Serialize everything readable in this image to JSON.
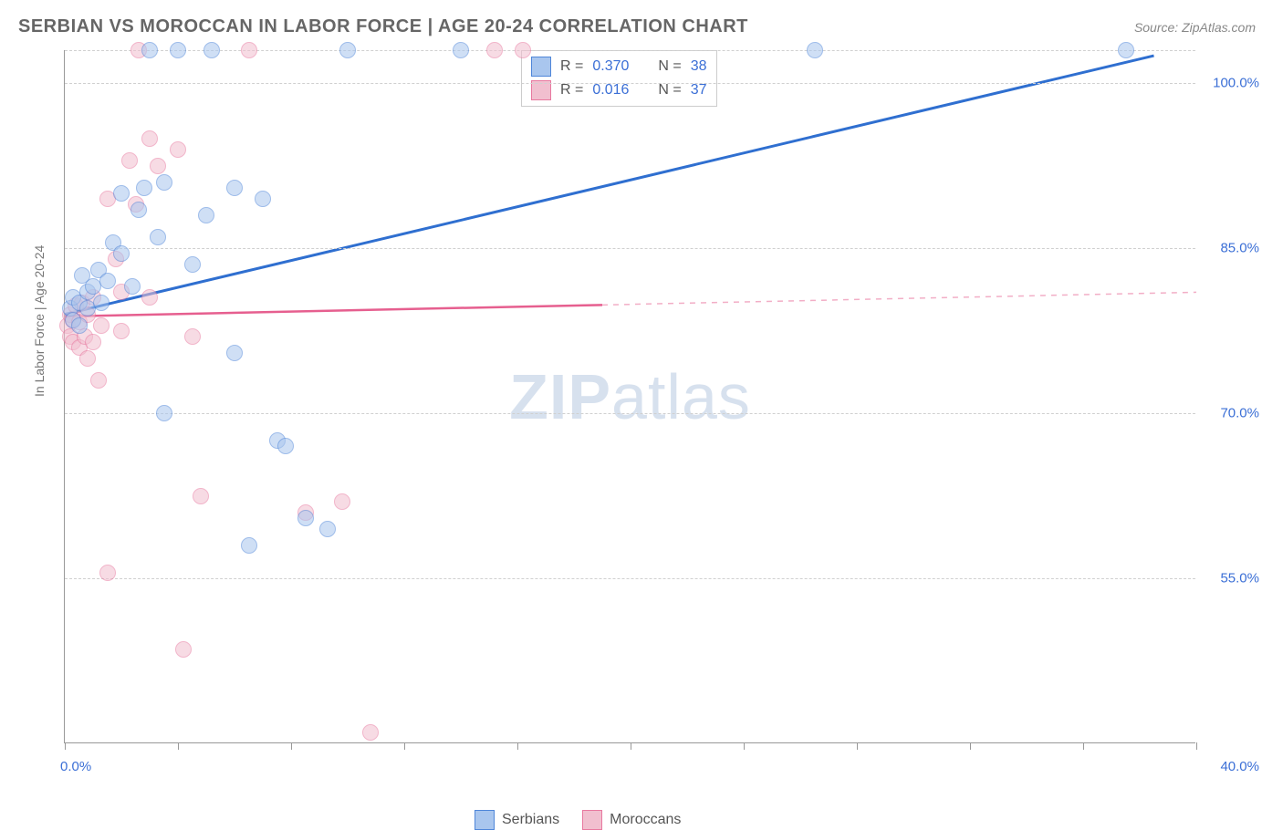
{
  "header": {
    "title": "SERBIAN VS MOROCCAN IN LABOR FORCE | AGE 20-24 CORRELATION CHART",
    "source": "Source: ZipAtlas.com"
  },
  "watermark": {
    "bold": "ZIP",
    "light": "atlas"
  },
  "chart": {
    "type": "scatter",
    "ylabel": "In Labor Force | Age 20-24",
    "x_domain": [
      0,
      40
    ],
    "y_domain": [
      40,
      103
    ],
    "background_color": "#ffffff",
    "grid_color": "#d0d0d0",
    "axis_color": "#999999",
    "tick_label_color": "#3b6fd6",
    "axis_label_color": "#777777",
    "marker_radius": 9,
    "marker_opacity": 0.55,
    "y_ticks": [
      {
        "v": 55,
        "label": "55.0%"
      },
      {
        "v": 70,
        "label": "70.0%"
      },
      {
        "v": 85,
        "label": "85.0%"
      },
      {
        "v": 100,
        "label": "100.0%"
      }
    ],
    "y_gridlines": [
      55,
      70,
      85,
      100,
      103
    ],
    "x_tick_positions": [
      0,
      4,
      8,
      12,
      16,
      20,
      24,
      28,
      32,
      36,
      40
    ],
    "x_labels": [
      {
        "v": 0,
        "label": "0.0%"
      },
      {
        "v": 40,
        "label": "40.0%"
      }
    ],
    "series": {
      "serbians": {
        "label": "Serbians",
        "fill": "#a9c6ee",
        "stroke": "#4f86d9",
        "line_color": "#2f6fd0",
        "line_width": 3,
        "R": "0.370",
        "N": "38",
        "regression": {
          "x1": 0,
          "y1": 79.0,
          "x2": 38.5,
          "y2": 102.5,
          "solid_until_x": 38.5
        },
        "points": [
          {
            "x": 0.2,
            "y": 79.5
          },
          {
            "x": 0.3,
            "y": 78.5
          },
          {
            "x": 0.3,
            "y": 80.5
          },
          {
            "x": 0.5,
            "y": 80.0
          },
          {
            "x": 0.5,
            "y": 78.0
          },
          {
            "x": 0.6,
            "y": 82.5
          },
          {
            "x": 0.8,
            "y": 81.0
          },
          {
            "x": 0.8,
            "y": 79.5
          },
          {
            "x": 1.0,
            "y": 81.5
          },
          {
            "x": 1.2,
            "y": 83.0
          },
          {
            "x": 1.3,
            "y": 80.0
          },
          {
            "x": 1.5,
            "y": 82.0
          },
          {
            "x": 1.7,
            "y": 85.5
          },
          {
            "x": 2.0,
            "y": 90.0
          },
          {
            "x": 2.0,
            "y": 84.5
          },
          {
            "x": 2.4,
            "y": 81.5
          },
          {
            "x": 2.6,
            "y": 88.5
          },
          {
            "x": 2.8,
            "y": 90.5
          },
          {
            "x": 3.0,
            "y": 103.0
          },
          {
            "x": 3.3,
            "y": 86.0
          },
          {
            "x": 3.5,
            "y": 91.0
          },
          {
            "x": 3.5,
            "y": 70.0
          },
          {
            "x": 4.0,
            "y": 103.0
          },
          {
            "x": 4.5,
            "y": 83.5
          },
          {
            "x": 5.0,
            "y": 88.0
          },
          {
            "x": 5.2,
            "y": 103.0
          },
          {
            "x": 6.0,
            "y": 90.5
          },
          {
            "x": 6.0,
            "y": 75.5
          },
          {
            "x": 6.5,
            "y": 58.0
          },
          {
            "x": 7.0,
            "y": 89.5
          },
          {
            "x": 7.5,
            "y": 67.5
          },
          {
            "x": 7.8,
            "y": 67.0
          },
          {
            "x": 8.5,
            "y": 60.5
          },
          {
            "x": 9.3,
            "y": 59.5
          },
          {
            "x": 10.0,
            "y": 103.0
          },
          {
            "x": 14.0,
            "y": 103.0
          },
          {
            "x": 26.5,
            "y": 103.0
          },
          {
            "x": 37.5,
            "y": 103.0
          }
        ]
      },
      "moroccans": {
        "label": "Moroccans",
        "fill": "#f1bfcf",
        "stroke": "#e879a0",
        "line_color": "#e65f8f",
        "line_width": 2.5,
        "R": "0.016",
        "N": "37",
        "regression": {
          "x1": 0,
          "y1": 78.8,
          "x2": 40.0,
          "y2": 81.0,
          "solid_until_x": 19.0
        },
        "points": [
          {
            "x": 0.1,
            "y": 78.0
          },
          {
            "x": 0.2,
            "y": 77.0
          },
          {
            "x": 0.2,
            "y": 79.0
          },
          {
            "x": 0.3,
            "y": 78.5
          },
          {
            "x": 0.3,
            "y": 76.5
          },
          {
            "x": 0.4,
            "y": 79.8
          },
          {
            "x": 0.5,
            "y": 76.0
          },
          {
            "x": 0.5,
            "y": 78.3
          },
          {
            "x": 0.6,
            "y": 80.0
          },
          {
            "x": 0.7,
            "y": 77.0
          },
          {
            "x": 0.8,
            "y": 75.0
          },
          {
            "x": 0.8,
            "y": 79.0
          },
          {
            "x": 1.0,
            "y": 80.5
          },
          {
            "x": 1.0,
            "y": 76.5
          },
          {
            "x": 1.2,
            "y": 73.0
          },
          {
            "x": 1.3,
            "y": 78.0
          },
          {
            "x": 1.5,
            "y": 89.5
          },
          {
            "x": 1.5,
            "y": 55.5
          },
          {
            "x": 1.8,
            "y": 84.0
          },
          {
            "x": 2.0,
            "y": 77.5
          },
          {
            "x": 2.0,
            "y": 81.0
          },
          {
            "x": 2.3,
            "y": 93.0
          },
          {
            "x": 2.5,
            "y": 89.0
          },
          {
            "x": 2.6,
            "y": 103.0
          },
          {
            "x": 3.0,
            "y": 95.0
          },
          {
            "x": 3.0,
            "y": 80.5
          },
          {
            "x": 3.3,
            "y": 92.5
          },
          {
            "x": 4.0,
            "y": 94.0
          },
          {
            "x": 4.2,
            "y": 48.5
          },
          {
            "x": 4.5,
            "y": 77.0
          },
          {
            "x": 4.8,
            "y": 62.5
          },
          {
            "x": 6.5,
            "y": 103.0
          },
          {
            "x": 8.5,
            "y": 61.0
          },
          {
            "x": 9.8,
            "y": 62.0
          },
          {
            "x": 10.8,
            "y": 41.0
          },
          {
            "x": 15.2,
            "y": 103.0
          },
          {
            "x": 16.2,
            "y": 103.0
          }
        ]
      }
    }
  },
  "legends": {
    "top": {
      "r_prefix": "R =",
      "n_prefix": "N ="
    },
    "bottom_order": [
      "serbians",
      "moroccans"
    ]
  }
}
